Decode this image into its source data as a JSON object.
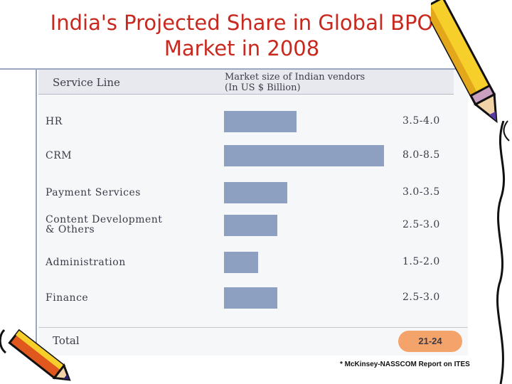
{
  "title": "India's Projected Share in Global BPO Market in 2008",
  "source_note": "* McKinsey-NASSCOM Report on ITES",
  "chart_data": {
    "type": "bar",
    "orientation": "horizontal",
    "title": "India's Projected Share in Global BPO Market in 2008",
    "column_headers": {
      "category": "Service Line",
      "value_line1": "Market size of Indian vendors",
      "value_line2": "(In US $ Billion)"
    },
    "categories": [
      [
        "HR"
      ],
      [
        "CRM"
      ],
      [
        "Payment Services"
      ],
      [
        "Content Development",
        "& Others"
      ],
      [
        "Administration"
      ],
      [
        "Finance"
      ]
    ],
    "value_labels": [
      "3.5-4.0",
      "8.0-8.5",
      "3.0-3.5",
      "2.5-3.0",
      "1.5-2.0",
      "2.5-3.0"
    ],
    "values": [
      3.75,
      8.25,
      3.25,
      2.75,
      1.75,
      2.75
    ],
    "xlim": [
      0,
      8.5
    ],
    "total_label": "Total",
    "total_value": "21-24",
    "colors": {
      "bar": "#8da0c2",
      "title": "#c8281e",
      "total_badge": "#f4a36a"
    }
  }
}
